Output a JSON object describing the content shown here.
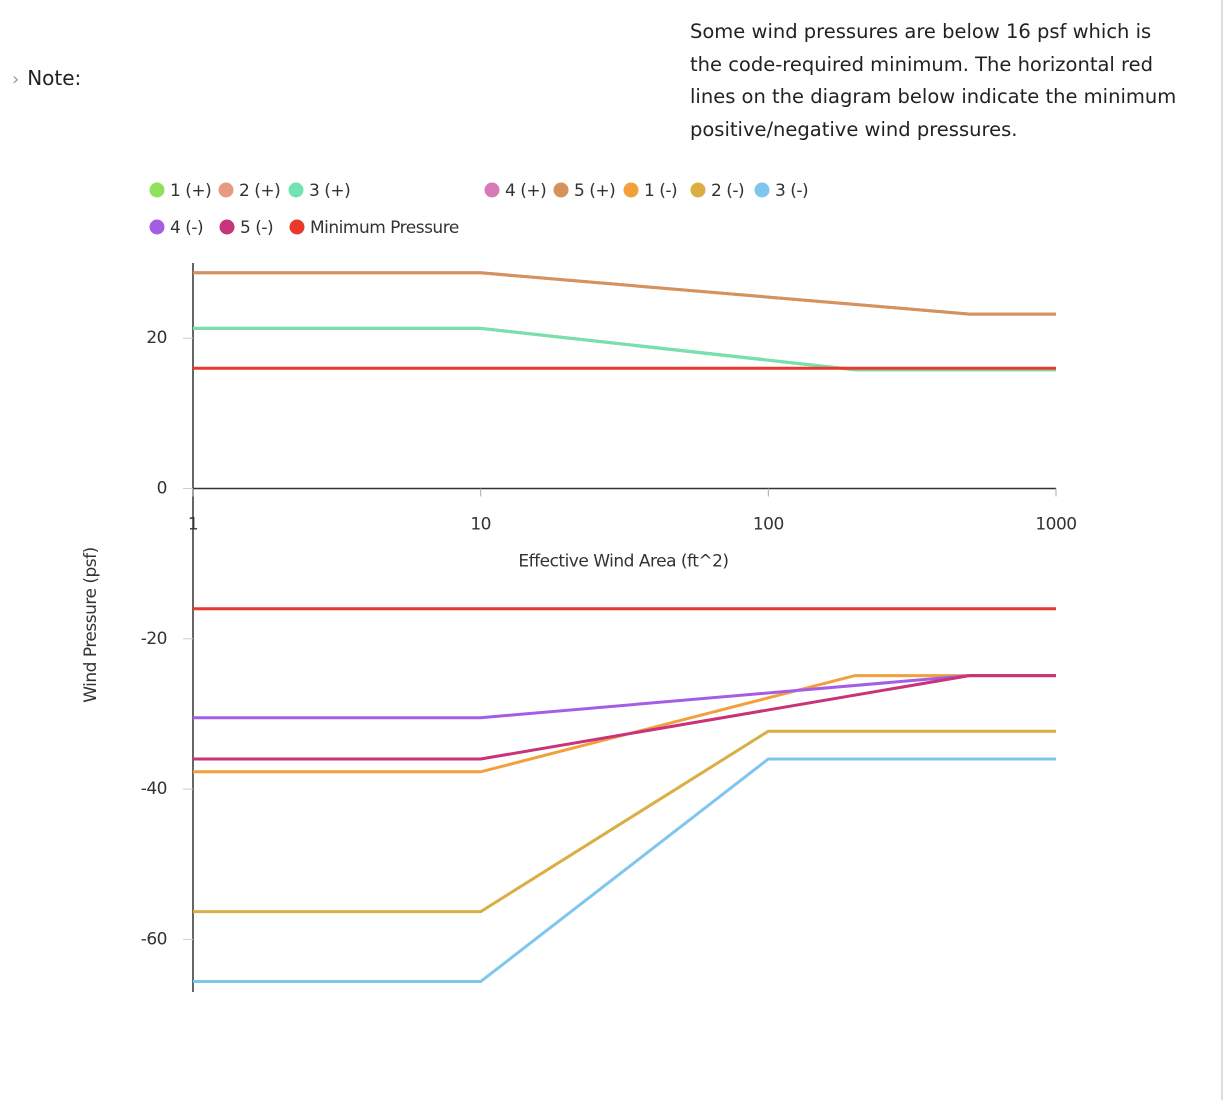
{
  "note_label": "Note:",
  "note_text": "Some wind pressures are below 16 psf which is the code-required minimum. The horizontal red lines on the diagram below indicate the minimum positive/negative wind pressures.",
  "chart_data": {
    "type": "line",
    "xlabel": "Effective Wind Area (ft^2)",
    "ylabel": "Wind Pressure (psf)",
    "xscale": "log",
    "xlim": [
      1,
      1000
    ],
    "xticks": [
      1,
      10,
      100,
      1000
    ],
    "ylim": [
      -67,
      30
    ],
    "yticks": [
      20,
      0,
      -20,
      -40,
      -60
    ],
    "grid": false,
    "legend": "top",
    "series": [
      {
        "name": "1 (+)",
        "color": "#8fe05a",
        "x": [
          1,
          10,
          200,
          1000
        ],
        "values": [
          21.3,
          21.3,
          15.8,
          15.8
        ]
      },
      {
        "name": "2 (+)",
        "color": "#e89a80",
        "x": [
          1,
          10,
          200,
          1000
        ],
        "values": [
          21.3,
          21.3,
          15.8,
          15.8
        ]
      },
      {
        "name": "3 (+)",
        "color": "#72e3b0",
        "x": [
          1,
          10,
          200,
          1000
        ],
        "values": [
          21.3,
          21.3,
          15.8,
          15.8
        ]
      },
      {
        "name": "4 (+)",
        "color": "#d77ab7",
        "x": [
          1,
          10,
          500,
          1000
        ],
        "values": [
          28.7,
          28.7,
          23.2,
          23.2
        ]
      },
      {
        "name": "5 (+)",
        "color": "#d4935a",
        "x": [
          1,
          10,
          500,
          1000
        ],
        "values": [
          28.7,
          28.7,
          23.2,
          23.2
        ]
      },
      {
        "name": "1 (-)",
        "color": "#f2a03a",
        "x": [
          1,
          10,
          200,
          1000
        ],
        "values": [
          -37.7,
          -37.7,
          -24.9,
          -24.9
        ]
      },
      {
        "name": "2 (-)",
        "color": "#d9ae42",
        "x": [
          1,
          10,
          100,
          1000
        ],
        "values": [
          -56.3,
          -56.3,
          -32.3,
          -32.3
        ]
      },
      {
        "name": "3 (-)",
        "color": "#7fc6ee",
        "x": [
          1,
          10,
          100,
          1000
        ],
        "values": [
          -65.6,
          -65.6,
          -36.0,
          -36.0
        ]
      },
      {
        "name": "4 (-)",
        "color": "#a55de6",
        "x": [
          1,
          10,
          500,
          1000
        ],
        "values": [
          -30.5,
          -30.5,
          -24.9,
          -24.9
        ]
      },
      {
        "name": "5 (-)",
        "color": "#c8337a",
        "x": [
          1,
          10,
          500,
          1000
        ],
        "values": [
          -36.0,
          -36.0,
          -24.9,
          -24.9
        ]
      },
      {
        "name": "Minimum Pressure",
        "color": "#e8392b",
        "x": [
          1,
          1000,
          null,
          1,
          1000
        ],
        "values": [
          16,
          16,
          null,
          -16,
          -16
        ]
      }
    ]
  }
}
